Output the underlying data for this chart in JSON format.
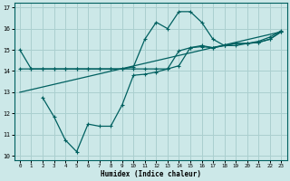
{
  "xlabel": "Humidex (Indice chaleur)",
  "background_color": "#cce8e8",
  "line_color": "#006060",
  "grid_color": "#aacfcf",
  "xlim": [
    -0.5,
    23.5
  ],
  "ylim": [
    9.8,
    17.2
  ],
  "xticks": [
    0,
    1,
    2,
    3,
    4,
    5,
    6,
    7,
    8,
    9,
    10,
    11,
    12,
    13,
    14,
    15,
    16,
    17,
    18,
    19,
    20,
    21,
    22,
    23
  ],
  "yticks": [
    10,
    11,
    12,
    13,
    14,
    15,
    16,
    17
  ],
  "curve1_x": [
    0,
    1,
    2,
    3,
    4,
    5,
    6,
    7,
    8,
    9,
    10,
    11,
    12,
    13,
    14,
    15,
    16,
    17,
    18,
    19,
    20,
    21,
    22,
    23
  ],
  "curve1_y": [
    15.0,
    14.1,
    14.1,
    14.1,
    14.1,
    14.1,
    14.1,
    14.1,
    14.1,
    14.1,
    14.2,
    15.5,
    16.3,
    16.0,
    16.8,
    16.8,
    16.3,
    15.5,
    15.2,
    15.2,
    15.3,
    15.4,
    15.6,
    15.9
  ],
  "curve2_x": [
    0,
    1,
    2,
    3,
    4,
    5,
    6,
    7,
    8,
    9,
    10,
    11,
    12,
    13,
    14,
    15,
    16,
    17,
    18,
    19,
    20,
    21,
    22,
    23
  ],
  "curve2_y": [
    14.1,
    14.1,
    14.1,
    14.1,
    14.1,
    14.1,
    14.1,
    14.1,
    14.1,
    14.1,
    14.1,
    14.1,
    14.1,
    14.1,
    14.25,
    15.1,
    15.15,
    15.1,
    15.2,
    15.3,
    15.3,
    15.35,
    15.5,
    15.85
  ],
  "curve3_x": [
    2,
    3,
    4,
    5,
    6,
    7,
    8,
    9,
    10,
    11,
    12,
    13,
    14,
    15,
    16,
    17,
    18,
    19,
    20,
    21,
    22,
    23
  ],
  "curve3_y": [
    12.75,
    11.85,
    10.75,
    10.2,
    11.5,
    11.4,
    11.4,
    12.4,
    13.8,
    13.85,
    13.95,
    14.1,
    14.95,
    15.1,
    15.2,
    15.1,
    15.2,
    15.3,
    15.3,
    15.35,
    15.5,
    15.85
  ],
  "curve4_x": [
    0,
    23
  ],
  "curve4_y": [
    13.0,
    15.85
  ]
}
